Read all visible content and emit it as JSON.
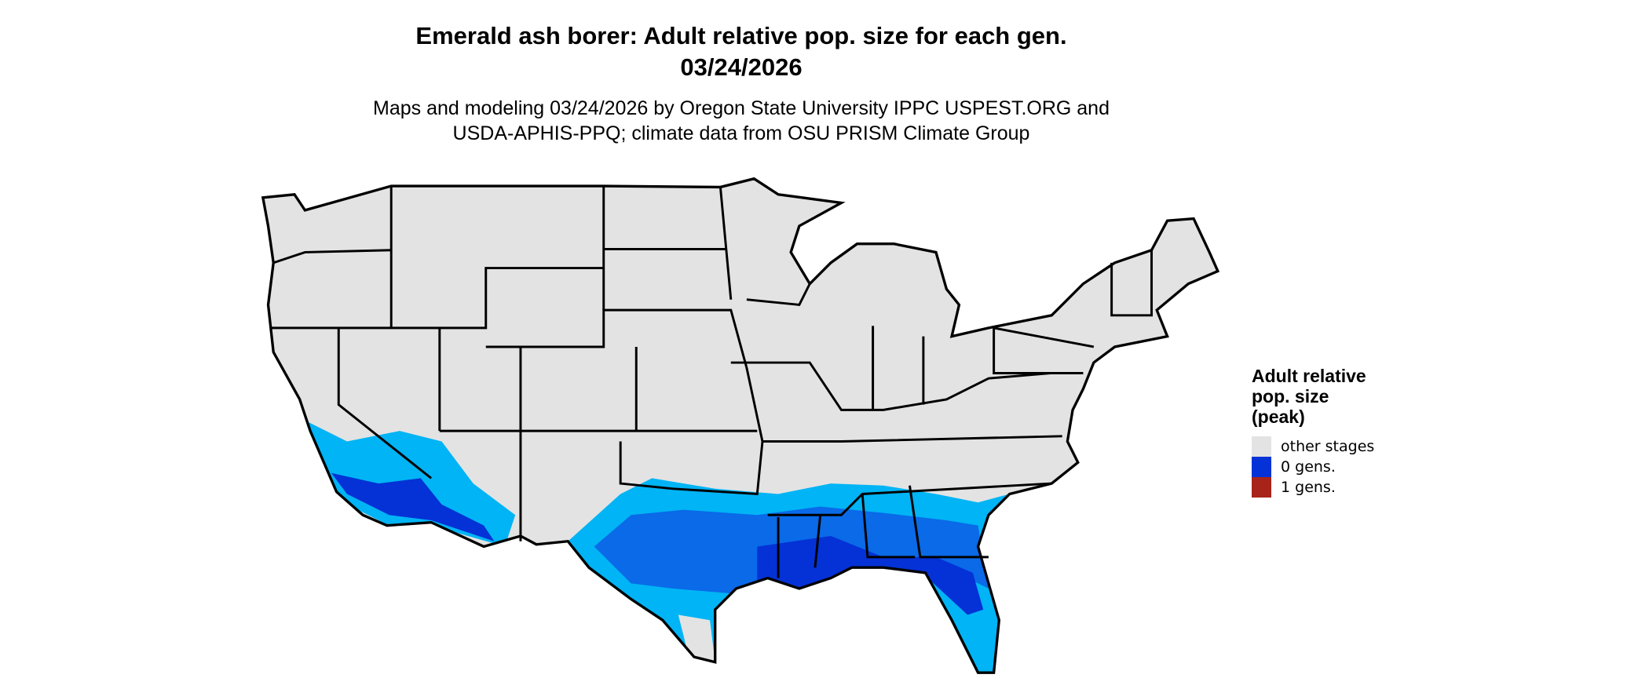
{
  "title": {
    "line1": "Emerald ash borer: Adult relative pop. size for each gen.",
    "line2": "03/24/2026"
  },
  "subtitle": {
    "line1": "Maps and modeling 03/24/2026 by Oregon State University IPPC USPEST.ORG and",
    "line2": "USDA-APHIS-PPQ; climate data from OSU PRISM Climate Group"
  },
  "legend": {
    "title_lines": [
      "Adult relative",
      "pop. size",
      "(peak)"
    ],
    "items": [
      {
        "label": "other stages",
        "color": "#e3e3e3"
      },
      {
        "label": "0 gens.",
        "color": "#0432d6"
      },
      {
        "label": "1 gens.",
        "color": "#a8241a"
      }
    ]
  },
  "colors": {
    "land": "#e3e3e3",
    "border": "#000000",
    "light_blue": "#00b4f5",
    "mid_blue": "#0a6ae8",
    "dark_blue": "#0432d6"
  }
}
